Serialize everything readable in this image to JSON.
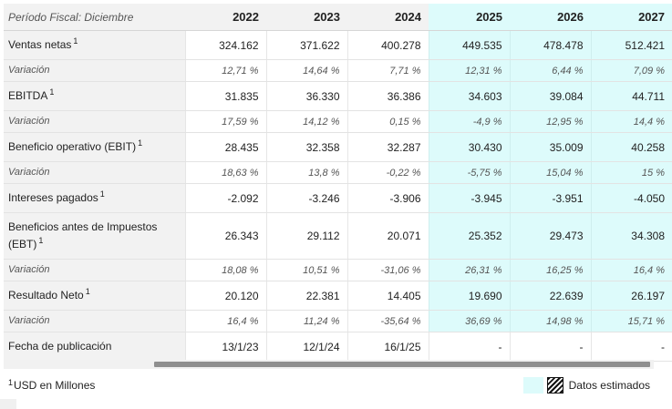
{
  "header": {
    "period_label": "Período Fiscal: Diciembre",
    "years": [
      "2022",
      "2023",
      "2024",
      "2025",
      "2026",
      "2027"
    ]
  },
  "rows": [
    {
      "label": "Ventas netas",
      "sup": "1",
      "values": [
        "324.162",
        "371.622",
        "400.278",
        "449.535",
        "478.478",
        "512.421"
      ]
    },
    {
      "label": "Variación",
      "values": [
        "12,71 %",
        "14,64 %",
        "7,71 %",
        "12,31 %",
        "6,44 %",
        "7,09 %"
      ]
    },
    {
      "label": "EBITDA",
      "sup": "1",
      "values": [
        "31.835",
        "36.330",
        "36.386",
        "34.603",
        "39.084",
        "44.711"
      ]
    },
    {
      "label": "Variación",
      "values": [
        "17,59 %",
        "14,12 %",
        "0,15 %",
        "-4,9 %",
        "12,95 %",
        "14,4 %"
      ]
    },
    {
      "label": "Beneficio operativo (EBIT)",
      "sup": "1",
      "values": [
        "28.435",
        "32.358",
        "32.287",
        "30.430",
        "35.009",
        "40.258"
      ]
    },
    {
      "label": "Variación",
      "values": [
        "18,63 %",
        "13,8 %",
        "-0,22 %",
        "-5,75 %",
        "15,04 %",
        "15 %"
      ]
    },
    {
      "label": "Intereses pagados",
      "sup": "1",
      "values": [
        "-2.092",
        "-3.246",
        "-3.906",
        "-3.945",
        "-3.951",
        "-4.050"
      ]
    },
    {
      "label": "Beneficios antes de Impuestos (EBT)",
      "sup": "1",
      "values": [
        "26.343",
        "29.112",
        "20.071",
        "25.352",
        "29.473",
        "34.308"
      ]
    },
    {
      "label": "Variación",
      "values": [
        "18,08 %",
        "10,51 %",
        "-31,06 %",
        "26,31 %",
        "16,25 %",
        "16,4 %"
      ]
    },
    {
      "label": "Resultado Neto",
      "sup": "1",
      "values": [
        "20.120",
        "22.381",
        "14.405",
        "19.690",
        "22.639",
        "26.197"
      ]
    },
    {
      "label": "Variación",
      "values": [
        "16,4 %",
        "11,24 %",
        "-35,64 %",
        "36,69 %",
        "14,98 %",
        "15,71 %"
      ]
    },
    {
      "label": "Fecha de publicación",
      "values": [
        "13/1/23",
        "12/1/24",
        "16/1/25",
        "-",
        "-",
        "-"
      ]
    }
  ],
  "footer": {
    "unit_sup": "1",
    "unit_label": "USD en Millones",
    "legend_label": "Datos estimados"
  },
  "colors": {
    "estimate_bg": "#ddfbfb",
    "label_bg": "#f2f2f2"
  }
}
